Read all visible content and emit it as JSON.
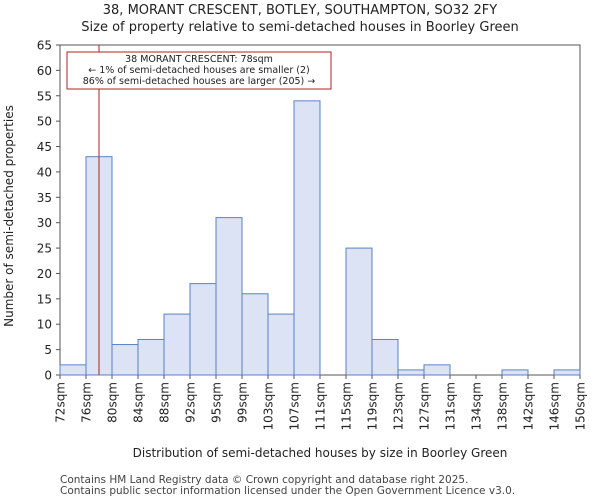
{
  "chart_data": {
    "type": "bar",
    "title": "38, MORANT CRESCENT, BOTLEY, SOUTHAMPTON, SO32 2FY",
    "subtitle": "Size of property relative to semi-detached houses in Boorley Green",
    "xlabel": "Distribution of semi-detached houses by size in Boorley Green",
    "ylabel": "Number of semi-detached properties",
    "ylim": [
      0,
      65
    ],
    "yticks": [
      0,
      5,
      10,
      15,
      20,
      25,
      30,
      35,
      40,
      45,
      50,
      55,
      60,
      65
    ],
    "bin_edges": [
      "72sqm",
      "76sqm",
      "80sqm",
      "84sqm",
      "88sqm",
      "92sqm",
      "95sqm",
      "99sqm",
      "103sqm",
      "107sqm",
      "111sqm",
      "115sqm",
      "119sqm",
      "123sqm",
      "127sqm",
      "131sqm",
      "134sqm",
      "138sqm",
      "142sqm",
      "146sqm",
      "150sqm"
    ],
    "values": [
      2,
      43,
      6,
      7,
      12,
      18,
      31,
      16,
      12,
      54,
      0,
      25,
      7,
      1,
      2,
      0,
      0,
      1,
      0,
      1
    ],
    "bar_color": "#dbe3f4",
    "bar_edge_color": "#5a82c2",
    "marker": {
      "value_sqm": 78,
      "color": "#b22222",
      "annotation": [
        "38 MORANT CRESCENT: 78sqm",
        "← 1% of semi-detached houses are smaller (2)",
        "86% of semi-detached houses are larger (205) →"
      ]
    }
  },
  "footer": [
    "Contains HM Land Registry data © Crown copyright and database right 2025.",
    "Contains public sector information licensed under the Open Government Licence v3.0."
  ]
}
